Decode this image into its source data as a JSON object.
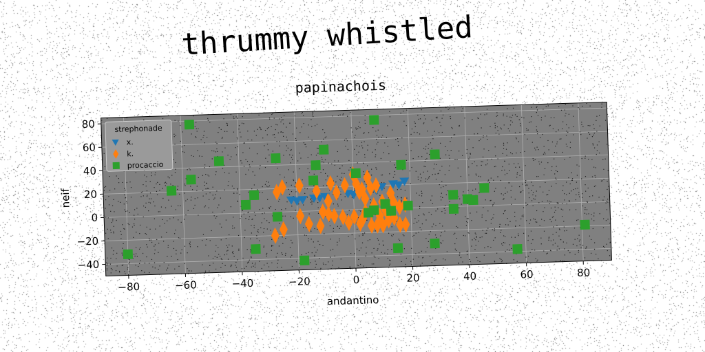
{
  "suptitle": "thrummy whistled",
  "chart_data": {
    "type": "scatter",
    "title": "papinachois",
    "xlabel": "andantino",
    "ylabel": "neif",
    "xlim": [
      -88,
      90
    ],
    "ylim": [
      -50,
      85
    ],
    "xticks": [
      -80,
      -60,
      -40,
      -20,
      0,
      20,
      40,
      60,
      80
    ],
    "yticks": [
      -40,
      -20,
      0,
      20,
      40,
      60,
      80
    ],
    "grid": true,
    "legend": {
      "title": "strephonade",
      "position": "top-left"
    },
    "colors": {
      "plot_bg": "#808080",
      "grid": "#b0b0b0",
      "x": "#1f77b4",
      "k": "#ff7f0e",
      "procaccio": "#2ca02c"
    },
    "series": [
      {
        "name": "x.",
        "marker": "triangle-down",
        "color": "#1f77b4",
        "points": [
          [
            -22,
            10
          ],
          [
            -18,
            10
          ],
          [
            -14,
            11
          ],
          [
            -10,
            12
          ],
          [
            -6,
            13
          ],
          [
            -2,
            14
          ],
          [
            2,
            15
          ],
          [
            6,
            17
          ],
          [
            10,
            19
          ],
          [
            14,
            21
          ],
          [
            18,
            23
          ],
          [
            -20,
            9
          ],
          [
            -12,
            11
          ],
          [
            0,
            13
          ],
          [
            8,
            16
          ],
          [
            16,
            20
          ]
        ]
      },
      {
        "name": "k.",
        "marker": "thin-diamond",
        "color": "#ff7f0e",
        "points": [
          [
            -27,
            17
          ],
          [
            -25,
            21
          ],
          [
            -19,
            22
          ],
          [
            -19,
            -4
          ],
          [
            -16,
            -11
          ],
          [
            -13,
            17
          ],
          [
            -9,
            8
          ],
          [
            -8,
            23
          ],
          [
            -6,
            15
          ],
          [
            -3,
            21
          ],
          [
            -2,
            -11
          ],
          [
            -11,
            -1
          ],
          [
            -9,
            -3
          ],
          [
            -7,
            -5
          ],
          [
            -4,
            -6
          ],
          [
            -28,
            -20
          ],
          [
            -25,
            -15
          ],
          [
            -12,
            -13
          ],
          [
            2,
            -12
          ],
          [
            3,
            -8
          ],
          [
            0,
            -6
          ],
          [
            2,
            15
          ],
          [
            4,
            9
          ],
          [
            5,
            27
          ],
          [
            6,
            18
          ],
          [
            6,
            -2
          ],
          [
            7,
            3
          ],
          [
            8,
            20
          ],
          [
            9,
            -6
          ],
          [
            10,
            -14
          ],
          [
            11,
            -1
          ],
          [
            12,
            -10
          ],
          [
            13,
            13
          ],
          [
            14,
            -8
          ],
          [
            16,
            -14
          ],
          [
            18,
            -14
          ],
          [
            14,
            5
          ],
          [
            16,
            1
          ],
          [
            18,
            3
          ],
          [
            0,
            30
          ],
          [
            1,
            22
          ],
          [
            3,
            17
          ],
          [
            4,
            -2
          ],
          [
            6,
            -14
          ],
          [
            8,
            -14
          ],
          [
            10,
            6
          ]
        ]
      },
      {
        "name": "procaccio",
        "marker": "square",
        "color": "#2ca02c",
        "points": [
          [
            -80,
            -32
          ],
          [
            -64,
            21
          ],
          [
            -57,
            30
          ],
          [
            -57,
            77
          ],
          [
            -47,
            45
          ],
          [
            -38,
            7
          ],
          [
            -35,
            15
          ],
          [
            -35,
            -31
          ],
          [
            -27,
            46
          ],
          [
            -27,
            -4
          ],
          [
            -18,
            -42
          ],
          [
            -13,
            39
          ],
          [
            -14,
            26
          ],
          [
            -10,
            52
          ],
          [
            1,
            31
          ],
          [
            7,
            -1
          ],
          [
            8,
            76
          ],
          [
            13,
            -2
          ],
          [
            15,
            -34
          ],
          [
            17,
            37
          ],
          [
            19,
            2
          ],
          [
            28,
            -31
          ],
          [
            29,
            45
          ],
          [
            35,
            10
          ],
          [
            35,
            -2
          ],
          [
            40,
            6
          ],
          [
            42,
            5
          ],
          [
            46,
            15
          ],
          [
            57,
            -38
          ],
          [
            81,
            -19
          ],
          [
            11,
            4
          ],
          [
            5,
            -3
          ]
        ]
      }
    ]
  }
}
